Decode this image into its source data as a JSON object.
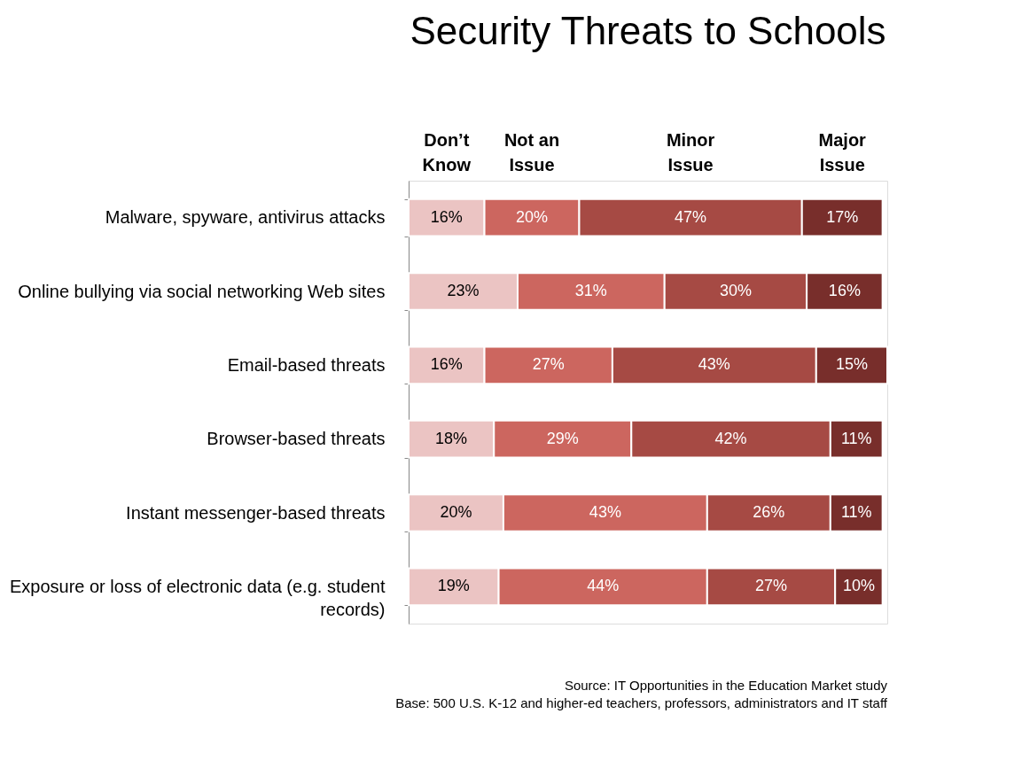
{
  "chart_data": {
    "type": "bar",
    "orientation": "horizontal",
    "stacked": true,
    "legend": "top",
    "title": "Security Threats to Schools",
    "categories": [
      "Malware, spyware, antivirus attacks",
      "Online bullying via social networking Web sites",
      "Email-based threats",
      "Browser-based threats",
      "Instant messenger-based threats",
      "Exposure or loss of electronic data (e.g. student records)"
    ],
    "series": [
      {
        "name": "Don’t Know",
        "color": "#ebc4c3",
        "values": [
          16,
          23,
          16,
          18,
          20,
          19
        ],
        "value_labels": [
          "16%",
          "23%",
          "16%",
          "18%",
          "20%",
          "19%"
        ]
      },
      {
        "name": "Not an Issue",
        "color": "#cc665f",
        "values": [
          20,
          31,
          27,
          29,
          43,
          44
        ],
        "value_labels": [
          "20%",
          "31%",
          "27%",
          "29%",
          "43%",
          "44%"
        ]
      },
      {
        "name": "Minor Issue",
        "color": "#a64a44",
        "values": [
          47,
          30,
          43,
          42,
          26,
          27
        ],
        "value_labels": [
          "47%",
          "30%",
          "43%",
          "42%",
          "26%",
          "27%"
        ]
      },
      {
        "name": "Major Issue",
        "color": "#782e2b",
        "values": [
          17,
          16,
          15,
          11,
          11,
          10
        ],
        "value_labels": [
          "17%",
          "16%",
          "15%",
          "11%",
          "11%",
          "10%"
        ]
      }
    ],
    "annotations": [
      "Source: IT Opportunities in the Education Market study",
      "Base: 500 U.S. K-12 and higher-ed teachers, professors, administrators and IT staff"
    ]
  }
}
